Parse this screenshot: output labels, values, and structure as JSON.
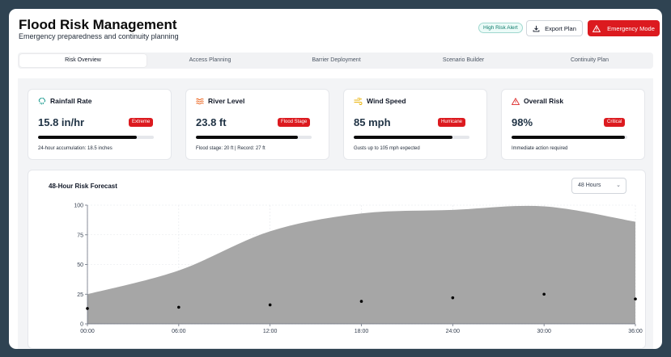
{
  "header": {
    "title": "Flood Risk Management",
    "subtitle": "Emergency preparedness and continuity planning",
    "alert_badge": "High Risk Alert",
    "export_label": "Export Plan",
    "emergency_label": "Emergency Mode"
  },
  "tabs": [
    {
      "label": "Risk Overview",
      "active": true
    },
    {
      "label": "Access Planning",
      "active": false
    },
    {
      "label": "Barrier Deployment",
      "active": false
    },
    {
      "label": "Scenario Builder",
      "active": false
    },
    {
      "label": "Continuity Plan",
      "active": false
    }
  ],
  "cards": [
    {
      "title": "Rainfall Rate",
      "icon": "cloud-rain-icon",
      "icon_color": "#0d9488",
      "value": "15.8 in/hr",
      "badge": "Extreme",
      "progress_pct": 85,
      "note": "24-hour accumulation: 18.5 inches"
    },
    {
      "title": "River Level",
      "icon": "waves-icon",
      "icon_color": "#ea580c",
      "value": "23.8 ft",
      "badge": "Flood Stage",
      "progress_pct": 88,
      "note": "Flood stage: 20 ft | Record: 27 ft"
    },
    {
      "title": "Wind Speed",
      "icon": "wind-icon",
      "icon_color": "#eab308",
      "value": "85 mph",
      "badge": "Hurricane",
      "progress_pct": 85,
      "note": "Gusts up to 105 mph expected"
    },
    {
      "title": "Overall Risk",
      "icon": "warning-triangle-icon",
      "icon_color": "#dc2626",
      "value": "98%",
      "badge": "Critical",
      "progress_pct": 98,
      "note": "Immediate action required"
    }
  ],
  "forecast": {
    "title": "48-Hour Risk Forecast",
    "range_value": "48 Hours"
  },
  "chart_data": {
    "type": "area",
    "x": [
      "00:00",
      "06:00",
      "12:00",
      "18:00",
      "24:00",
      "30:00",
      "36:00"
    ],
    "series": [
      {
        "values": [
          25,
          45,
          78,
          93,
          96,
          99,
          86
        ]
      },
      {
        "values": [
          13,
          14,
          16,
          19,
          22,
          25,
          21
        ]
      }
    ],
    "ylim": [
      0,
      100
    ],
    "yticks": [
      0,
      25,
      50,
      75,
      100
    ],
    "grid": true,
    "colors": {
      "area": "#a6a6a6",
      "points": "#000000"
    }
  }
}
